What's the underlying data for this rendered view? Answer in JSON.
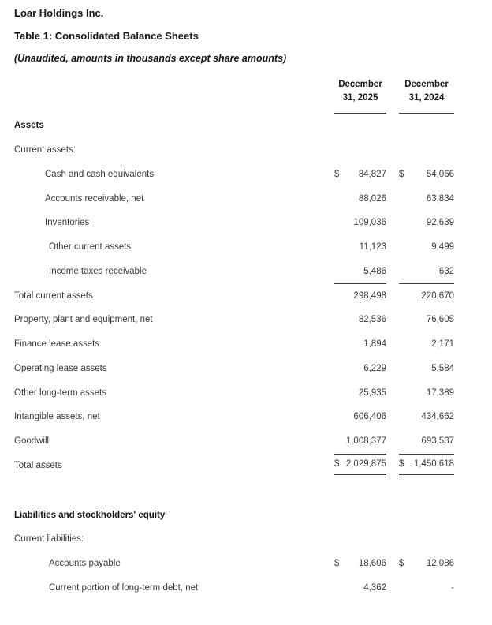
{
  "page": {
    "company": "Loar Holdings Inc.",
    "table_title": "Table 1: Consolidated Balance Sheets",
    "subtitle": "(Unaudited, amounts in thousands except share amounts)"
  },
  "columns": [
    {
      "label_line1": "December",
      "label_line2": "31, 2025"
    },
    {
      "label_line1": "December",
      "label_line2": "31, 2024"
    }
  ],
  "colors": {
    "text": "#383838",
    "heading": "#161616",
    "rule": "#3f3f3f",
    "background": "#ffffff"
  },
  "rows": [
    {
      "label": "Assets",
      "type": "heading"
    },
    {
      "label": "Current assets:",
      "type": "plain"
    },
    {
      "label": "Cash and cash equivalents",
      "indent": 1,
      "d1": "$",
      "v1": "84,827",
      "d2": "$",
      "v2": "54,066"
    },
    {
      "label": "Accounts receivable, net",
      "indent": 1,
      "v1": "88,026",
      "v2": "63,834"
    },
    {
      "label": "Inventories",
      "indent": 1,
      "v1": "109,036",
      "v2": "92,639"
    },
    {
      "label": "Other current assets",
      "indent": 2,
      "v1": "11,123",
      "v2": "9,499"
    },
    {
      "label": "Income taxes receivable",
      "indent": 2,
      "v1": "5,486",
      "v2": "632"
    },
    {
      "label": "Total current assets",
      "v1": "298,498",
      "v2": "220,670",
      "rule": "top"
    },
    {
      "label": "Property, plant and equipment, net",
      "v1": "82,536",
      "v2": "76,605"
    },
    {
      "label": "Finance lease assets",
      "v1": "1,894",
      "v2": "2,171"
    },
    {
      "label": "Operating lease assets",
      "v1": "6,229",
      "v2": "5,584"
    },
    {
      "label": "Other long-term assets",
      "v1": "25,935",
      "v2": "17,389"
    },
    {
      "label": "Intangible assets, net",
      "v1": "606,406",
      "v2": "434,662"
    },
    {
      "label": "Goodwill",
      "v1": "1,008,377",
      "v2": "693,537"
    },
    {
      "label": "Total assets",
      "d1": "$",
      "v1": "2,029,875",
      "d2": "$",
      "v2": "1,450,618",
      "rule": "grand"
    },
    {
      "label": "Liabilities and stockholders' equity",
      "type": "heading",
      "gap_before": true
    },
    {
      "label": "Current liabilities:",
      "type": "plain"
    },
    {
      "label": "Accounts payable",
      "indent": 2,
      "d1": "$",
      "v1": "18,606",
      "d2": "$",
      "v2": "12,086"
    },
    {
      "label": "Current portion of long-term debt, net",
      "indent": 2,
      "v1": "4,362",
      "v2": "-"
    }
  ]
}
